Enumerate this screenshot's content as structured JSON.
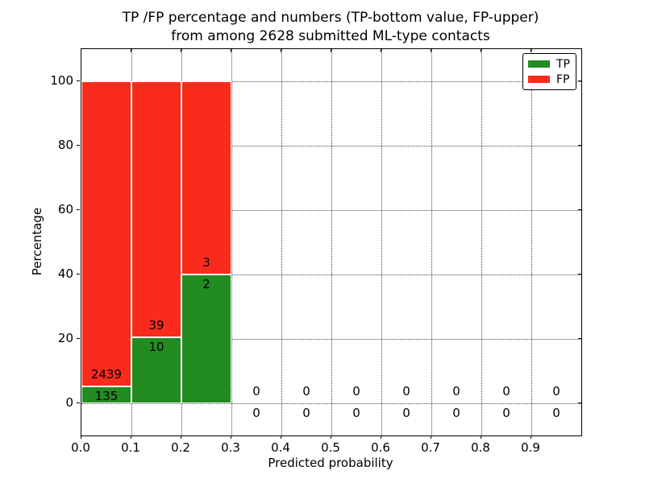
{
  "title": {
    "line1": "TP /FP percentage and numbers (TP-bottom value, FP-upper)",
    "line2": "from among 2628 submitted ML-type contacts"
  },
  "axes": {
    "xlabel": "Predicted probability",
    "ylabel": "Percentage",
    "x_tick_labels": [
      "0.0",
      "0.1",
      "0.2",
      "0.3",
      "0.4",
      "0.5",
      "0.6",
      "0.7",
      "0.8",
      "0.9"
    ],
    "y_tick_labels": [
      "0",
      "20",
      "40",
      "60",
      "80",
      "100"
    ]
  },
  "legend": {
    "position": "upper right",
    "items": [
      {
        "label": "TP",
        "color": "#228b22"
      },
      {
        "label": "FP",
        "color": "#f92b1c"
      }
    ]
  },
  "chart_data": {
    "type": "bar",
    "stacked": true,
    "title": "TP /FP percentage and numbers (TP-bottom value, FP-upper) from among 2628 submitted ML-type contacts",
    "xlabel": "Predicted probability",
    "ylabel": "Percentage",
    "total_contacts": 2628,
    "bin_starts": [
      0.0,
      0.1,
      0.2,
      0.3,
      0.4,
      0.5,
      0.6,
      0.7,
      0.8,
      0.9
    ],
    "bin_width": 0.1,
    "xlim": [
      0.0,
      1.0
    ],
    "ylim": [
      -10,
      110
    ],
    "grid": true,
    "grid_style": "dotted",
    "y_grid_percent": [
      0,
      20,
      40,
      60,
      80,
      100
    ],
    "series": [
      {
        "name": "TP",
        "color": "#228b22",
        "counts": [
          135,
          10,
          2,
          0,
          0,
          0,
          0,
          0,
          0,
          0
        ],
        "percent": [
          5.2,
          20.4,
          40.0,
          0,
          0,
          0,
          0,
          0,
          0,
          0
        ]
      },
      {
        "name": "FP",
        "color": "#f92b1c",
        "counts": [
          2439,
          39,
          3,
          0,
          0,
          0,
          0,
          0,
          0,
          0
        ],
        "percent": [
          94.8,
          79.6,
          60.0,
          0,
          0,
          0,
          0,
          0,
          0,
          0
        ]
      }
    ],
    "label_convention": "TP count below green bar top, FP count above green bar top"
  }
}
